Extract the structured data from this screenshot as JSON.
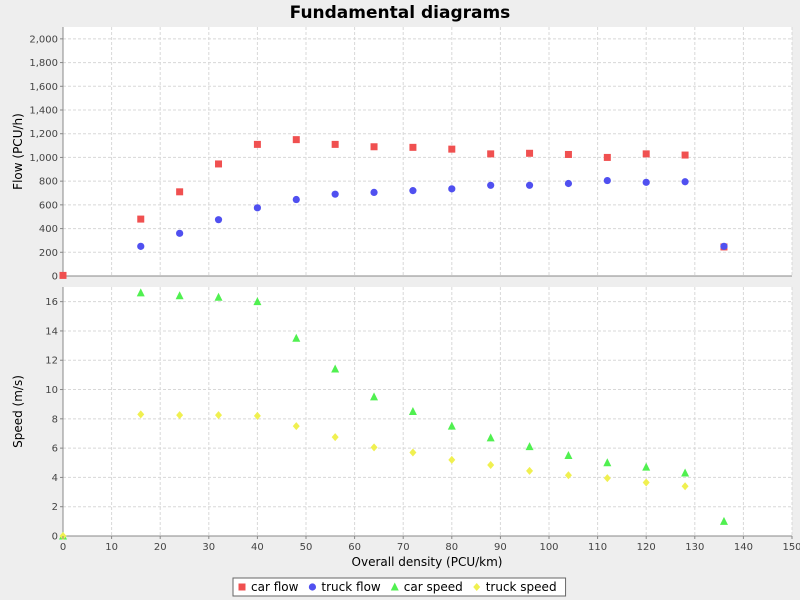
{
  "chart_data": {
    "type": "scatter",
    "title": "Fundamental diagrams",
    "xlabel": "Overall density (PCU/km)",
    "xlim": [
      0,
      150
    ],
    "xticks": [
      "0",
      "10",
      "20",
      "30",
      "40",
      "50",
      "60",
      "70",
      "80",
      "90",
      "100",
      "110",
      "120",
      "130",
      "140",
      "150"
    ],
    "grid": true,
    "legend_placement": "bottom",
    "panels": [
      {
        "ylabel": "Flow (PCU/h)",
        "ylim": [
          0,
          2100
        ],
        "yticks": [
          "0",
          "200",
          "400",
          "600",
          "800",
          "1,000",
          "1,200",
          "1,400",
          "1,600",
          "1,800",
          "2,000"
        ],
        "series": [
          {
            "name": "car flow",
            "marker": "square",
            "color": "#f05050",
            "x": [
              0,
              16,
              24,
              32,
              40,
              48,
              56,
              64,
              72,
              80,
              88,
              96,
              104,
              112,
              120,
              128,
              136
            ],
            "y": [
              5,
              480,
              710,
              945,
              1110,
              1150,
              1110,
              1090,
              1085,
              1070,
              1030,
              1035,
              1025,
              1000,
              1030,
              1020,
              245
            ]
          },
          {
            "name": "truck flow",
            "marker": "circle",
            "color": "#5050f0",
            "x": [
              16,
              24,
              32,
              40,
              48,
              56,
              64,
              72,
              80,
              88,
              96,
              104,
              112,
              120,
              128,
              136
            ],
            "y": [
              250,
              360,
              475,
              575,
              645,
              690,
              705,
              720,
              735,
              765,
              765,
              780,
              805,
              790,
              795,
              250
            ]
          }
        ]
      },
      {
        "ylabel": "Speed (m/s)",
        "ylim": [
          0,
          17
        ],
        "yticks": [
          "0",
          "2",
          "4",
          "6",
          "8",
          "10",
          "12",
          "14",
          "16"
        ],
        "series": [
          {
            "name": "car speed",
            "marker": "triangle",
            "color": "#50f050",
            "x": [
              0,
              16,
              24,
              32,
              40,
              48,
              56,
              64,
              72,
              80,
              88,
              96,
              104,
              112,
              120,
              128,
              136
            ],
            "y": [
              0,
              16.6,
              16.4,
              16.3,
              16.0,
              13.5,
              11.4,
              9.5,
              8.5,
              7.5,
              6.7,
              6.1,
              5.5,
              5.0,
              4.7,
              4.3,
              1.0
            ]
          },
          {
            "name": "truck speed",
            "marker": "diamond",
            "color": "#f0f050",
            "x": [
              0,
              16,
              24,
              32,
              40,
              48,
              56,
              64,
              72,
              80,
              88,
              96,
              104,
              112,
              120,
              128
            ],
            "y": [
              0,
              8.3,
              8.25,
              8.25,
              8.2,
              7.5,
              6.75,
              6.05,
              5.7,
              5.2,
              4.85,
              4.45,
              4.15,
              3.95,
              3.65,
              3.4
            ]
          }
        ]
      }
    ]
  }
}
